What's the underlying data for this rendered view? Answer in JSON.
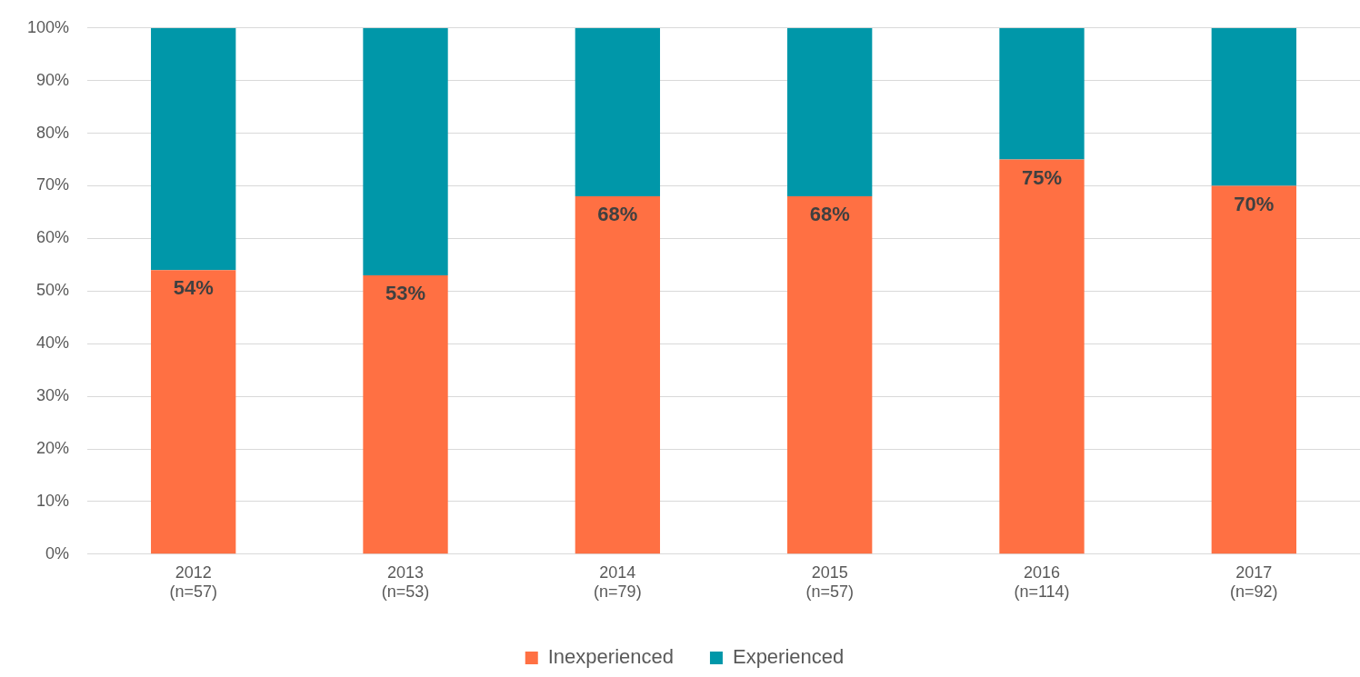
{
  "chart_data": {
    "type": "bar",
    "stacked": true,
    "categories": [
      "2012\n(n=57)",
      "2013\n(n=53)",
      "2014\n(n=79)",
      "2015\n(n=57)",
      "2016\n(n=114)",
      "2017\n(n=92)"
    ],
    "series": [
      {
        "name": "Inexperienced",
        "color": "#ff7043",
        "values": [
          54,
          53,
          68,
          68,
          75,
          70
        ],
        "value_labels": [
          "54%",
          "53%",
          "68%",
          "68%",
          "75%",
          "70%"
        ]
      },
      {
        "name": "Experienced",
        "color": "#0097a9",
        "values": [
          46,
          47,
          32,
          32,
          25,
          30
        ]
      }
    ],
    "ylim": [
      0,
      100
    ],
    "yticks": [
      {
        "value": 0,
        "label": "0%"
      },
      {
        "value": 10,
        "label": "10%"
      },
      {
        "value": 20,
        "label": "20%"
      },
      {
        "value": 30,
        "label": "30%"
      },
      {
        "value": 40,
        "label": "40%"
      },
      {
        "value": 50,
        "label": "50%"
      },
      {
        "value": 60,
        "label": "60%"
      },
      {
        "value": 70,
        "label": "70%"
      },
      {
        "value": 80,
        "label": "80%"
      },
      {
        "value": 90,
        "label": "90%"
      },
      {
        "value": 100,
        "label": "100%"
      }
    ],
    "grid": "y",
    "legend": "bottom"
  }
}
